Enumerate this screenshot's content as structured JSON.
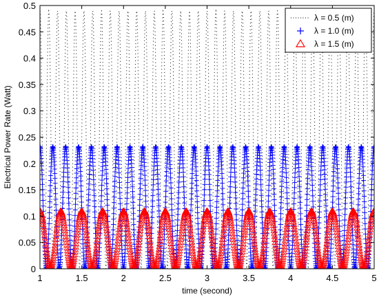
{
  "chart_data": {
    "type": "line",
    "xlabel": "time (second)",
    "ylabel": "Electrical Power Rate (Watt)",
    "xlim": [
      1,
      5
    ],
    "ylim": [
      0,
      0.5
    ],
    "xticks": [
      "1",
      "1.5",
      "2",
      "2.5",
      "3",
      "3.5",
      "4",
      "4.5",
      "5"
    ],
    "yticks": [
      "0",
      "0.05",
      "0.1",
      "0.15",
      "0.2",
      "0.25",
      "0.3",
      "0.35",
      "0.4",
      "0.45",
      "0.5"
    ],
    "grid": false,
    "legend_position": "top-right",
    "x_start": 1,
    "x_step": 0.1,
    "series": [
      {
        "name": "λ = 0.5 (m)",
        "marker": "dotted-line",
        "color": "#000000",
        "amplitude": 0.49,
        "peak_count": 38,
        "values": [
          0,
          0.49,
          0,
          0.49,
          0,
          0.49,
          0,
          0.49,
          0,
          0.49,
          0,
          0.49,
          0,
          0.49,
          0,
          0.49,
          0,
          0.49,
          0,
          0.49,
          0,
          0.49,
          0,
          0.49,
          0,
          0.49,
          0,
          0.49,
          0,
          0.49,
          0,
          0.49,
          0,
          0.49,
          0,
          0.49,
          0,
          0.49,
          0,
          0.49,
          0
        ]
      },
      {
        "name": "λ = 1.0 (m)",
        "marker": "plus",
        "color": "#0000ff",
        "amplitude": 0.232,
        "peak_count": 26,
        "values": [
          0.232,
          0.01,
          0.232,
          0.01,
          0.232,
          0.01,
          0.232,
          0.01,
          0.232,
          0.01,
          0.232,
          0.01,
          0.232,
          0.01,
          0.232,
          0.01,
          0.232,
          0.01,
          0.232,
          0.01,
          0.232,
          0.01,
          0.232,
          0.01,
          0.232,
          0.01,
          0.232,
          0.01,
          0.232,
          0.01,
          0.232,
          0.01,
          0.232,
          0.01,
          0.232,
          0.01,
          0.232,
          0.01,
          0.232,
          0.01,
          0.232
        ]
      },
      {
        "name": "λ = 1.5 (m)",
        "marker": "triangle",
        "color": "#ff0000",
        "amplitude": 0.11,
        "peak_count": 16,
        "values": [
          0.11,
          0.0,
          0.11,
          0.0,
          0.11,
          0.0,
          0.11,
          0.0,
          0.11,
          0.0,
          0.11,
          0.0,
          0.11,
          0.0,
          0.11,
          0.0,
          0.11,
          0.0,
          0.11,
          0.0,
          0.11,
          0.0,
          0.11,
          0.0,
          0.11,
          0.0,
          0.11,
          0.0,
          0.11,
          0.0,
          0.11,
          0.0,
          0.11,
          0.0,
          0.11,
          0.0,
          0.11,
          0.0,
          0.11,
          0.0,
          0.11
        ]
      }
    ]
  }
}
